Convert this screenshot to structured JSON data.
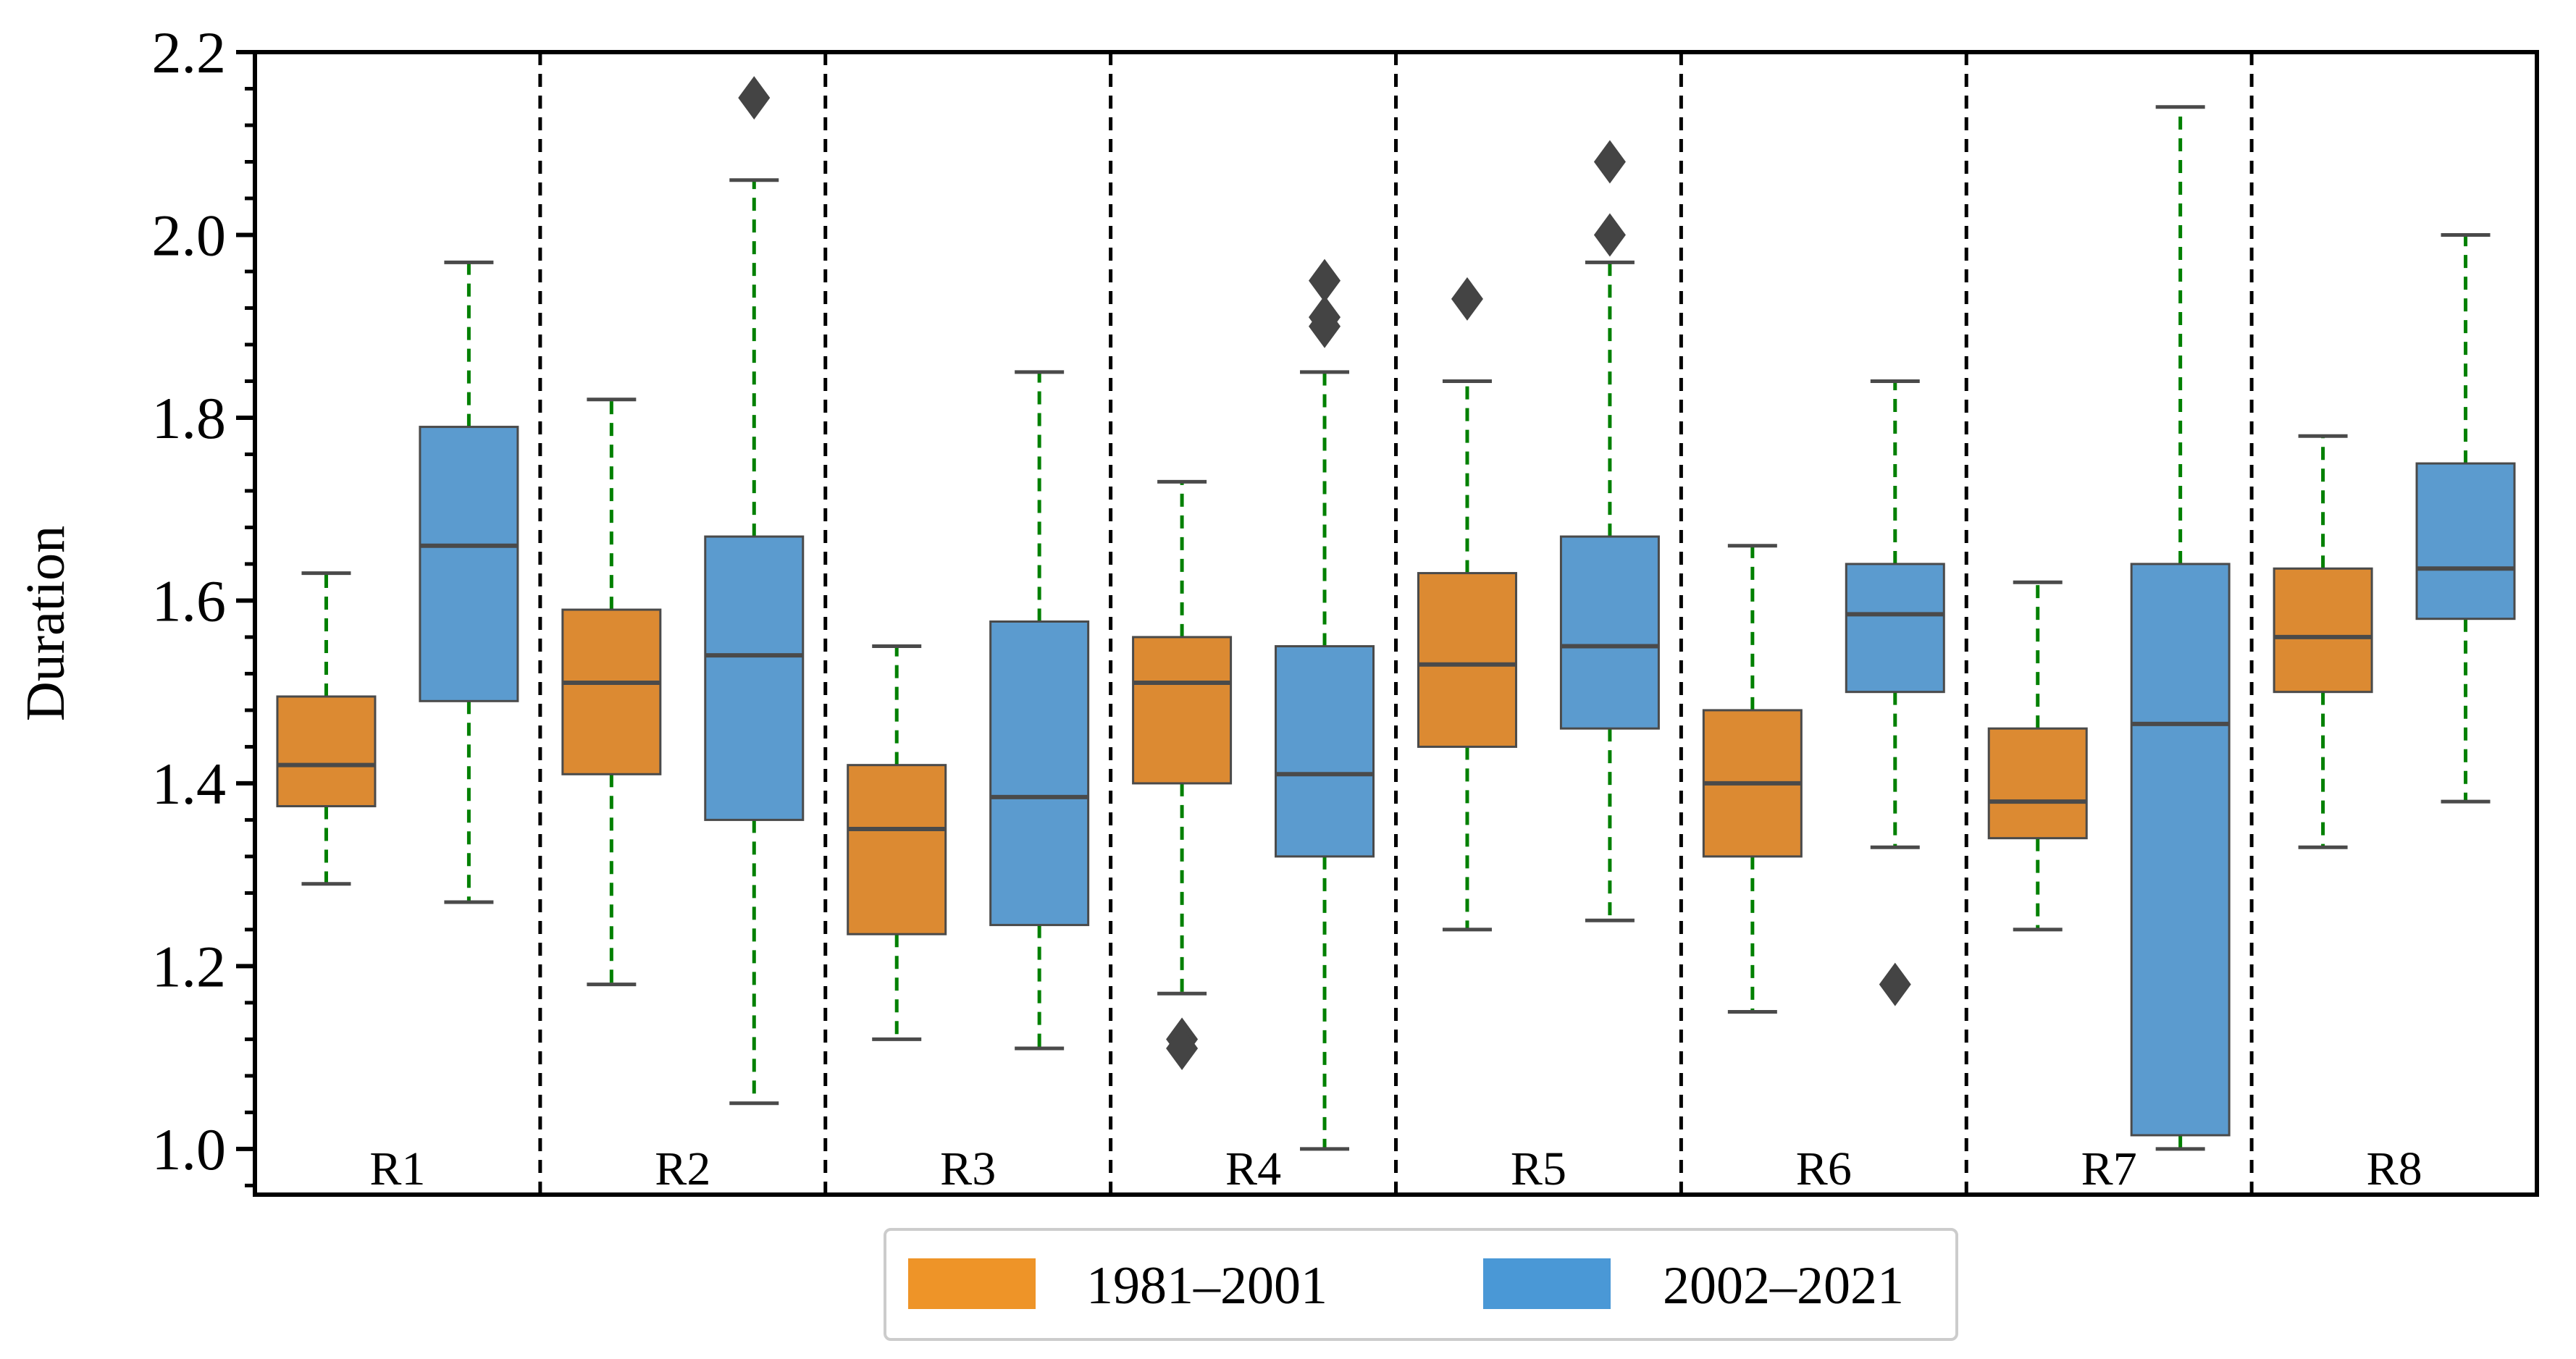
{
  "chart_data": {
    "type": "boxplot",
    "title": "",
    "xlabel": "",
    "ylabel": "Duration",
    "ylim": [
      0.95,
      2.2
    ],
    "yticks": [
      "1.0",
      "1.2",
      "1.4",
      "1.6",
      "1.8",
      "2.0",
      "2.2"
    ],
    "categories": [
      "R1",
      "R2",
      "R3",
      "R4",
      "R5",
      "R6",
      "R7",
      "R8"
    ],
    "legend": {
      "position": "bottom-center"
    },
    "series": [
      {
        "name": "1981–2001",
        "color": "#dc8a32",
        "boxes": [
          {
            "category": "R1",
            "whislo": 1.29,
            "q1": 1.375,
            "med": 1.42,
            "q3": 1.495,
            "whishi": 1.63,
            "fliers": []
          },
          {
            "category": "R2",
            "whislo": 1.18,
            "q1": 1.41,
            "med": 1.51,
            "q3": 1.59,
            "whishi": 1.82,
            "fliers": []
          },
          {
            "category": "R3",
            "whislo": 1.12,
            "q1": 1.235,
            "med": 1.35,
            "q3": 1.42,
            "whishi": 1.55,
            "fliers": []
          },
          {
            "category": "R4",
            "whislo": 1.17,
            "q1": 1.4,
            "med": 1.51,
            "q3": 1.56,
            "whishi": 1.73,
            "fliers": [
              1.12,
              1.11
            ]
          },
          {
            "category": "R5",
            "whislo": 1.24,
            "q1": 1.44,
            "med": 1.53,
            "q3": 1.63,
            "whishi": 1.84,
            "fliers": [
              1.93
            ]
          },
          {
            "category": "R6",
            "whislo": 1.15,
            "q1": 1.32,
            "med": 1.4,
            "q3": 1.48,
            "whishi": 1.66,
            "fliers": []
          },
          {
            "category": "R7",
            "whislo": 1.24,
            "q1": 1.34,
            "med": 1.38,
            "q3": 1.46,
            "whishi": 1.62,
            "fliers": []
          },
          {
            "category": "R8",
            "whislo": 1.33,
            "q1": 1.5,
            "med": 1.56,
            "q3": 1.635,
            "whishi": 1.78,
            "fliers": []
          }
        ]
      },
      {
        "name": "2002–2021",
        "color": "#5b9bcf",
        "boxes": [
          {
            "category": "R1",
            "whislo": 1.27,
            "q1": 1.49,
            "med": 1.66,
            "q3": 1.79,
            "whishi": 1.97,
            "fliers": []
          },
          {
            "category": "R2",
            "whislo": 1.05,
            "q1": 1.36,
            "med": 1.54,
            "q3": 1.67,
            "whishi": 2.06,
            "fliers": [
              2.15
            ]
          },
          {
            "category": "R3",
            "whislo": 1.11,
            "q1": 1.245,
            "med": 1.385,
            "q3": 1.577,
            "whishi": 1.85,
            "fliers": []
          },
          {
            "category": "R4",
            "whislo": 1.0,
            "q1": 1.32,
            "med": 1.41,
            "q3": 1.55,
            "whishi": 1.85,
            "fliers": [
              1.9,
              1.91,
              1.95
            ]
          },
          {
            "category": "R5",
            "whislo": 1.25,
            "q1": 1.46,
            "med": 1.55,
            "q3": 1.67,
            "whishi": 1.97,
            "fliers": [
              2.0,
              2.08
            ]
          },
          {
            "category": "R6",
            "whislo": 1.33,
            "q1": 1.5,
            "med": 1.585,
            "q3": 1.64,
            "whishi": 1.84,
            "fliers": [
              1.18
            ]
          },
          {
            "category": "R7",
            "whislo": 1.0,
            "q1": 1.015,
            "med": 1.465,
            "q3": 1.64,
            "whishi": 2.14,
            "fliers": []
          },
          {
            "category": "R8",
            "whislo": 1.38,
            "q1": 1.58,
            "med": 1.635,
            "q3": 1.75,
            "whishi": 2.0,
            "fliers": []
          }
        ]
      }
    ],
    "whisker_style": {
      "color": "#008000",
      "dashed": true
    },
    "median_color": "#4a4a4a",
    "separator_style": {
      "color": "#000000",
      "dashed": true
    }
  }
}
